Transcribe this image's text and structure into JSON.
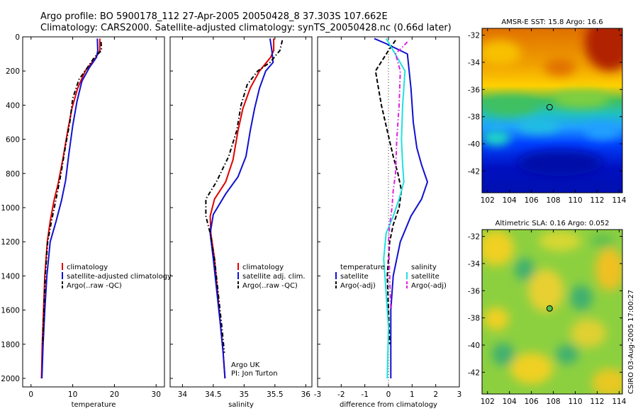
{
  "header": {
    "line1": "Argo profile: BO 5900178_112 27-Apr-2005 20050428_8 37.303S 107.662E",
    "line2": "Climatology: CARS2000. Satellite-adjusted climatology: synTS_20050428.nc (0.66d later)"
  },
  "credit": "CSIRO 03-Aug-2005 17:00:27",
  "colors": {
    "climatology": "#e00000",
    "satellite": "#1010d0",
    "argo": "#000000",
    "sat_salinity": "#20e0e0",
    "argo_salinity": "#e020e0"
  },
  "chart_data": [
    {
      "type": "line",
      "xlabel": "temperature",
      "ylabel": "",
      "xlim": [
        -2,
        32
      ],
      "ylim": [
        0,
        2050
      ],
      "y_inverted": true,
      "xticks": [
        0,
        10,
        20,
        30
      ],
      "yticks": [
        0,
        200,
        400,
        600,
        800,
        1000,
        1200,
        1400,
        1600,
        1800,
        2000
      ],
      "legend": [
        "climatology",
        "satellite-adjusted climatology",
        "Argo(..raw -QC)"
      ],
      "legend_position": "lower-right",
      "series": [
        {
          "name": "climatology",
          "style": "solid",
          "color": "#e00000",
          "x": [
            16.5,
            16.5,
            15.6,
            13.0,
            11.2,
            9.8,
            8.8,
            7.6,
            6.5,
            5.5,
            4.6,
            3.9,
            3.3,
            3.0,
            2.7,
            2.5
          ],
          "y": [
            10,
            80,
            120,
            200,
            300,
            420,
            550,
            720,
            860,
            960,
            1080,
            1200,
            1400,
            1600,
            1800,
            2000
          ]
        },
        {
          "name": "satellite-adjusted climatology",
          "style": "solid",
          "color": "#1010d0",
          "x": [
            15.9,
            16.0,
            15.7,
            14.0,
            12.2,
            11.0,
            10.0,
            9.0,
            8.3,
            7.3,
            6.0,
            4.6,
            3.8,
            3.3,
            2.9,
            2.6
          ],
          "y": [
            10,
            80,
            120,
            180,
            260,
            380,
            520,
            700,
            840,
            960,
            1080,
            1200,
            1400,
            1600,
            1800,
            2000
          ]
        },
        {
          "name": "Argo(..raw -QC)",
          "style": "dashdot",
          "color": "#000000",
          "x": [
            16.8,
            16.9,
            15.2,
            13.5,
            11.5,
            10.0,
            9.3,
            8.2,
            7.2,
            6.0,
            4.9,
            4.0,
            3.4,
            3.1,
            2.8
          ],
          "y": [
            30,
            80,
            120,
            180,
            250,
            360,
            500,
            650,
            800,
            950,
            1080,
            1200,
            1400,
            1600,
            1800
          ]
        }
      ]
    },
    {
      "type": "line",
      "xlabel": "salinity",
      "ylabel": "",
      "xlim": [
        33.8,
        36.1
      ],
      "ylim": [
        0,
        2050
      ],
      "y_inverted": true,
      "xticks": [
        34,
        34.5,
        35,
        35.5,
        36
      ],
      "legend": [
        "climatology",
        "satellite adj. clim.",
        "Argo(..raw -QC)"
      ],
      "legend_position": "lower-right",
      "annotation": [
        "Argo UK",
        "PI: Jon Turton"
      ],
      "series": [
        {
          "name": "climatology",
          "style": "solid",
          "color": "#e00000",
          "x": [
            35.48,
            35.48,
            35.43,
            35.25,
            35.1,
            34.98,
            34.9,
            34.82,
            34.7,
            34.52,
            34.45,
            34.46,
            34.52,
            34.57,
            34.62,
            34.66,
            34.69
          ],
          "y": [
            10,
            80,
            120,
            200,
            300,
            420,
            550,
            720,
            850,
            950,
            1050,
            1150,
            1300,
            1500,
            1700,
            1850,
            2000
          ]
        },
        {
          "name": "satellite adj. clim.",
          "style": "solid",
          "color": "#1010d0",
          "x": [
            35.42,
            35.45,
            35.47,
            35.35,
            35.25,
            35.17,
            35.1,
            35.03,
            34.9,
            34.7,
            34.5,
            34.45,
            34.5,
            34.56,
            34.62,
            34.66,
            34.69
          ],
          "y": [
            10,
            80,
            150,
            200,
            300,
            420,
            550,
            700,
            820,
            920,
            1040,
            1150,
            1300,
            1500,
            1700,
            1850,
            2000
          ]
        },
        {
          "name": "Argo(..raw -QC)",
          "style": "dashdot",
          "color": "#000000",
          "x": [
            35.62,
            35.58,
            35.42,
            35.22,
            35.05,
            34.95,
            34.88,
            34.75,
            34.55,
            34.38,
            34.38,
            34.45,
            34.52,
            34.58,
            34.64,
            34.68
          ],
          "y": [
            20,
            80,
            150,
            200,
            280,
            400,
            550,
            700,
            850,
            950,
            1050,
            1150,
            1300,
            1500,
            1700,
            1850
          ]
        }
      ]
    },
    {
      "type": "line",
      "xlabel": "difference from climatology",
      "ylabel": "",
      "xlim": [
        -3,
        3
      ],
      "ylim": [
        0,
        2050
      ],
      "y_inverted": true,
      "xticks": [
        -3,
        -2,
        -1,
        0,
        1,
        2,
        3
      ],
      "legend_groups": [
        {
          "header": "temperature",
          "items": [
            "satellite",
            "Argo(-adj)"
          ]
        },
        {
          "header": "salinity",
          "items": [
            "satellite",
            "Argo(-adj)"
          ]
        }
      ],
      "legend_position": "lower-center",
      "series": [
        {
          "name": "temperature satellite",
          "style": "solid",
          "color": "#1010d0",
          "x": [
            -0.6,
            -0.1,
            0.8,
            0.95,
            1.05,
            1.2,
            1.4,
            1.65,
            1.4,
            0.95,
            0.5,
            0.2,
            0.1,
            0.1,
            0.1,
            0.1
          ],
          "y": [
            10,
            40,
            100,
            300,
            500,
            650,
            750,
            850,
            950,
            1050,
            1200,
            1400,
            1600,
            1800,
            1900,
            2000
          ]
        },
        {
          "name": "temperature Argo(-adj)",
          "style": "dashed",
          "color": "#000000",
          "x": [
            0.3,
            0.0,
            -0.55,
            -0.3,
            -0.05,
            0.2,
            0.4,
            0.55,
            0.45,
            0.2,
            0.05,
            -0.05,
            0.0,
            0.05
          ],
          "y": [
            20,
            80,
            200,
            400,
            550,
            700,
            800,
            900,
            1000,
            1100,
            1200,
            1400,
            1600,
            1800
          ]
        },
        {
          "name": "salinity satellite",
          "style": "solid",
          "color": "#20e0e0",
          "x": [
            -0.1,
            0.2,
            0.7,
            0.6,
            0.55,
            0.6,
            0.65,
            0.45,
            0.2,
            -0.1,
            -0.2,
            -0.1,
            0.0,
            -0.05
          ],
          "y": [
            10,
            80,
            200,
            400,
            600,
            750,
            850,
            950,
            1050,
            1150,
            1300,
            1500,
            1700,
            2000
          ]
        },
        {
          "name": "salinity Argo(-adj)",
          "style": "dashdot",
          "color": "#e020e0",
          "x": [
            0.8,
            0.3,
            0.5,
            0.45,
            0.35,
            0.3,
            0.2,
            0.15,
            0.05,
            0.0,
            0.05,
            0.1
          ],
          "y": [
            30,
            100,
            200,
            400,
            600,
            800,
            900,
            1000,
            1100,
            1200,
            1400,
            1600
          ]
        }
      ]
    },
    {
      "type": "heatmap",
      "title": "AMSR-E SST: 15.8 Argo: 16.6",
      "xlim": [
        101.5,
        114.3
      ],
      "ylim": [
        -43.6,
        -31.5
      ],
      "xticks": [
        102,
        104,
        106,
        108,
        110,
        112,
        114
      ],
      "yticks": [
        -32,
        -34,
        -36,
        -38,
        -40,
        -42
      ],
      "colormap": "jet",
      "marker": {
        "lon": 107.662,
        "lat": -37.303
      }
    },
    {
      "type": "heatmap",
      "title": "Altimetric SLA: 0.16 Argo: 0.052",
      "xlim": [
        101.5,
        114.3
      ],
      "ylim": [
        -43.6,
        -31.5
      ],
      "xticks": [
        102,
        104,
        106,
        108,
        110,
        112,
        114
      ],
      "yticks": [
        -32,
        -34,
        -36,
        -38,
        -40,
        -42
      ],
      "colormap": "jet",
      "marker": {
        "lon": 107.662,
        "lat": -37.303
      }
    }
  ]
}
